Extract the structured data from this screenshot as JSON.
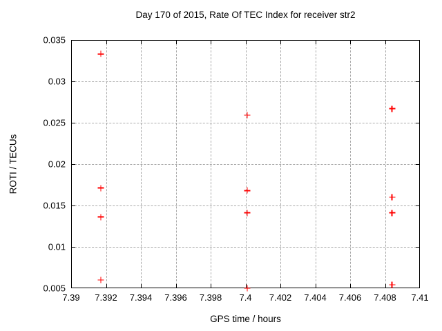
{
  "window": {
    "background": "#ffffff"
  },
  "colors": {
    "marker": "#ff0000",
    "grid": "#a8a8a8",
    "axis": "#000000",
    "text": "#000000"
  },
  "chart_data": {
    "type": "scatter",
    "title": "Day 170 of 2015, Rate Of TEC Index for receiver str2",
    "xlabel": "GPS time / hours",
    "ylabel": "ROTI / TECUs",
    "xlim": [
      7.39,
      7.41
    ],
    "ylim": [
      0.005,
      0.035
    ],
    "xticks": [
      7.39,
      7.392,
      7.394,
      7.396,
      7.398,
      7.4,
      7.402,
      7.404,
      7.406,
      7.408,
      7.41
    ],
    "xtick_labels": [
      "7.39",
      "7.392",
      "7.394",
      "7.396",
      "7.398",
      "7.4",
      "7.402",
      "7.404",
      "7.406",
      "7.408",
      "7.41"
    ],
    "yticks": [
      0.005,
      0.01,
      0.015,
      0.02,
      0.025,
      0.03,
      0.035
    ],
    "ytick_labels": [
      "0.005",
      "0.01",
      "0.015",
      "0.02",
      "0.025",
      "0.03",
      "0.035"
    ],
    "grid": true,
    "legend": "none",
    "marker_symbol": "plus",
    "series": [
      {
        "name": "ROTI",
        "color": "#ff0000",
        "points": [
          [
            7.3917,
            0.0333
          ],
          [
            7.3917,
            0.0171
          ],
          [
            7.3917,
            0.0136
          ],
          [
            7.3917,
            0.006
          ],
          [
            7.4001,
            0.0259
          ],
          [
            7.4001,
            0.0168
          ],
          [
            7.4001,
            0.0141
          ],
          [
            7.4001,
            0.005
          ],
          [
            7.4084,
            0.0267
          ],
          [
            7.4084,
            0.016
          ],
          [
            7.4084,
            0.0141
          ],
          [
            7.4084,
            0.0054
          ]
        ]
      }
    ]
  }
}
